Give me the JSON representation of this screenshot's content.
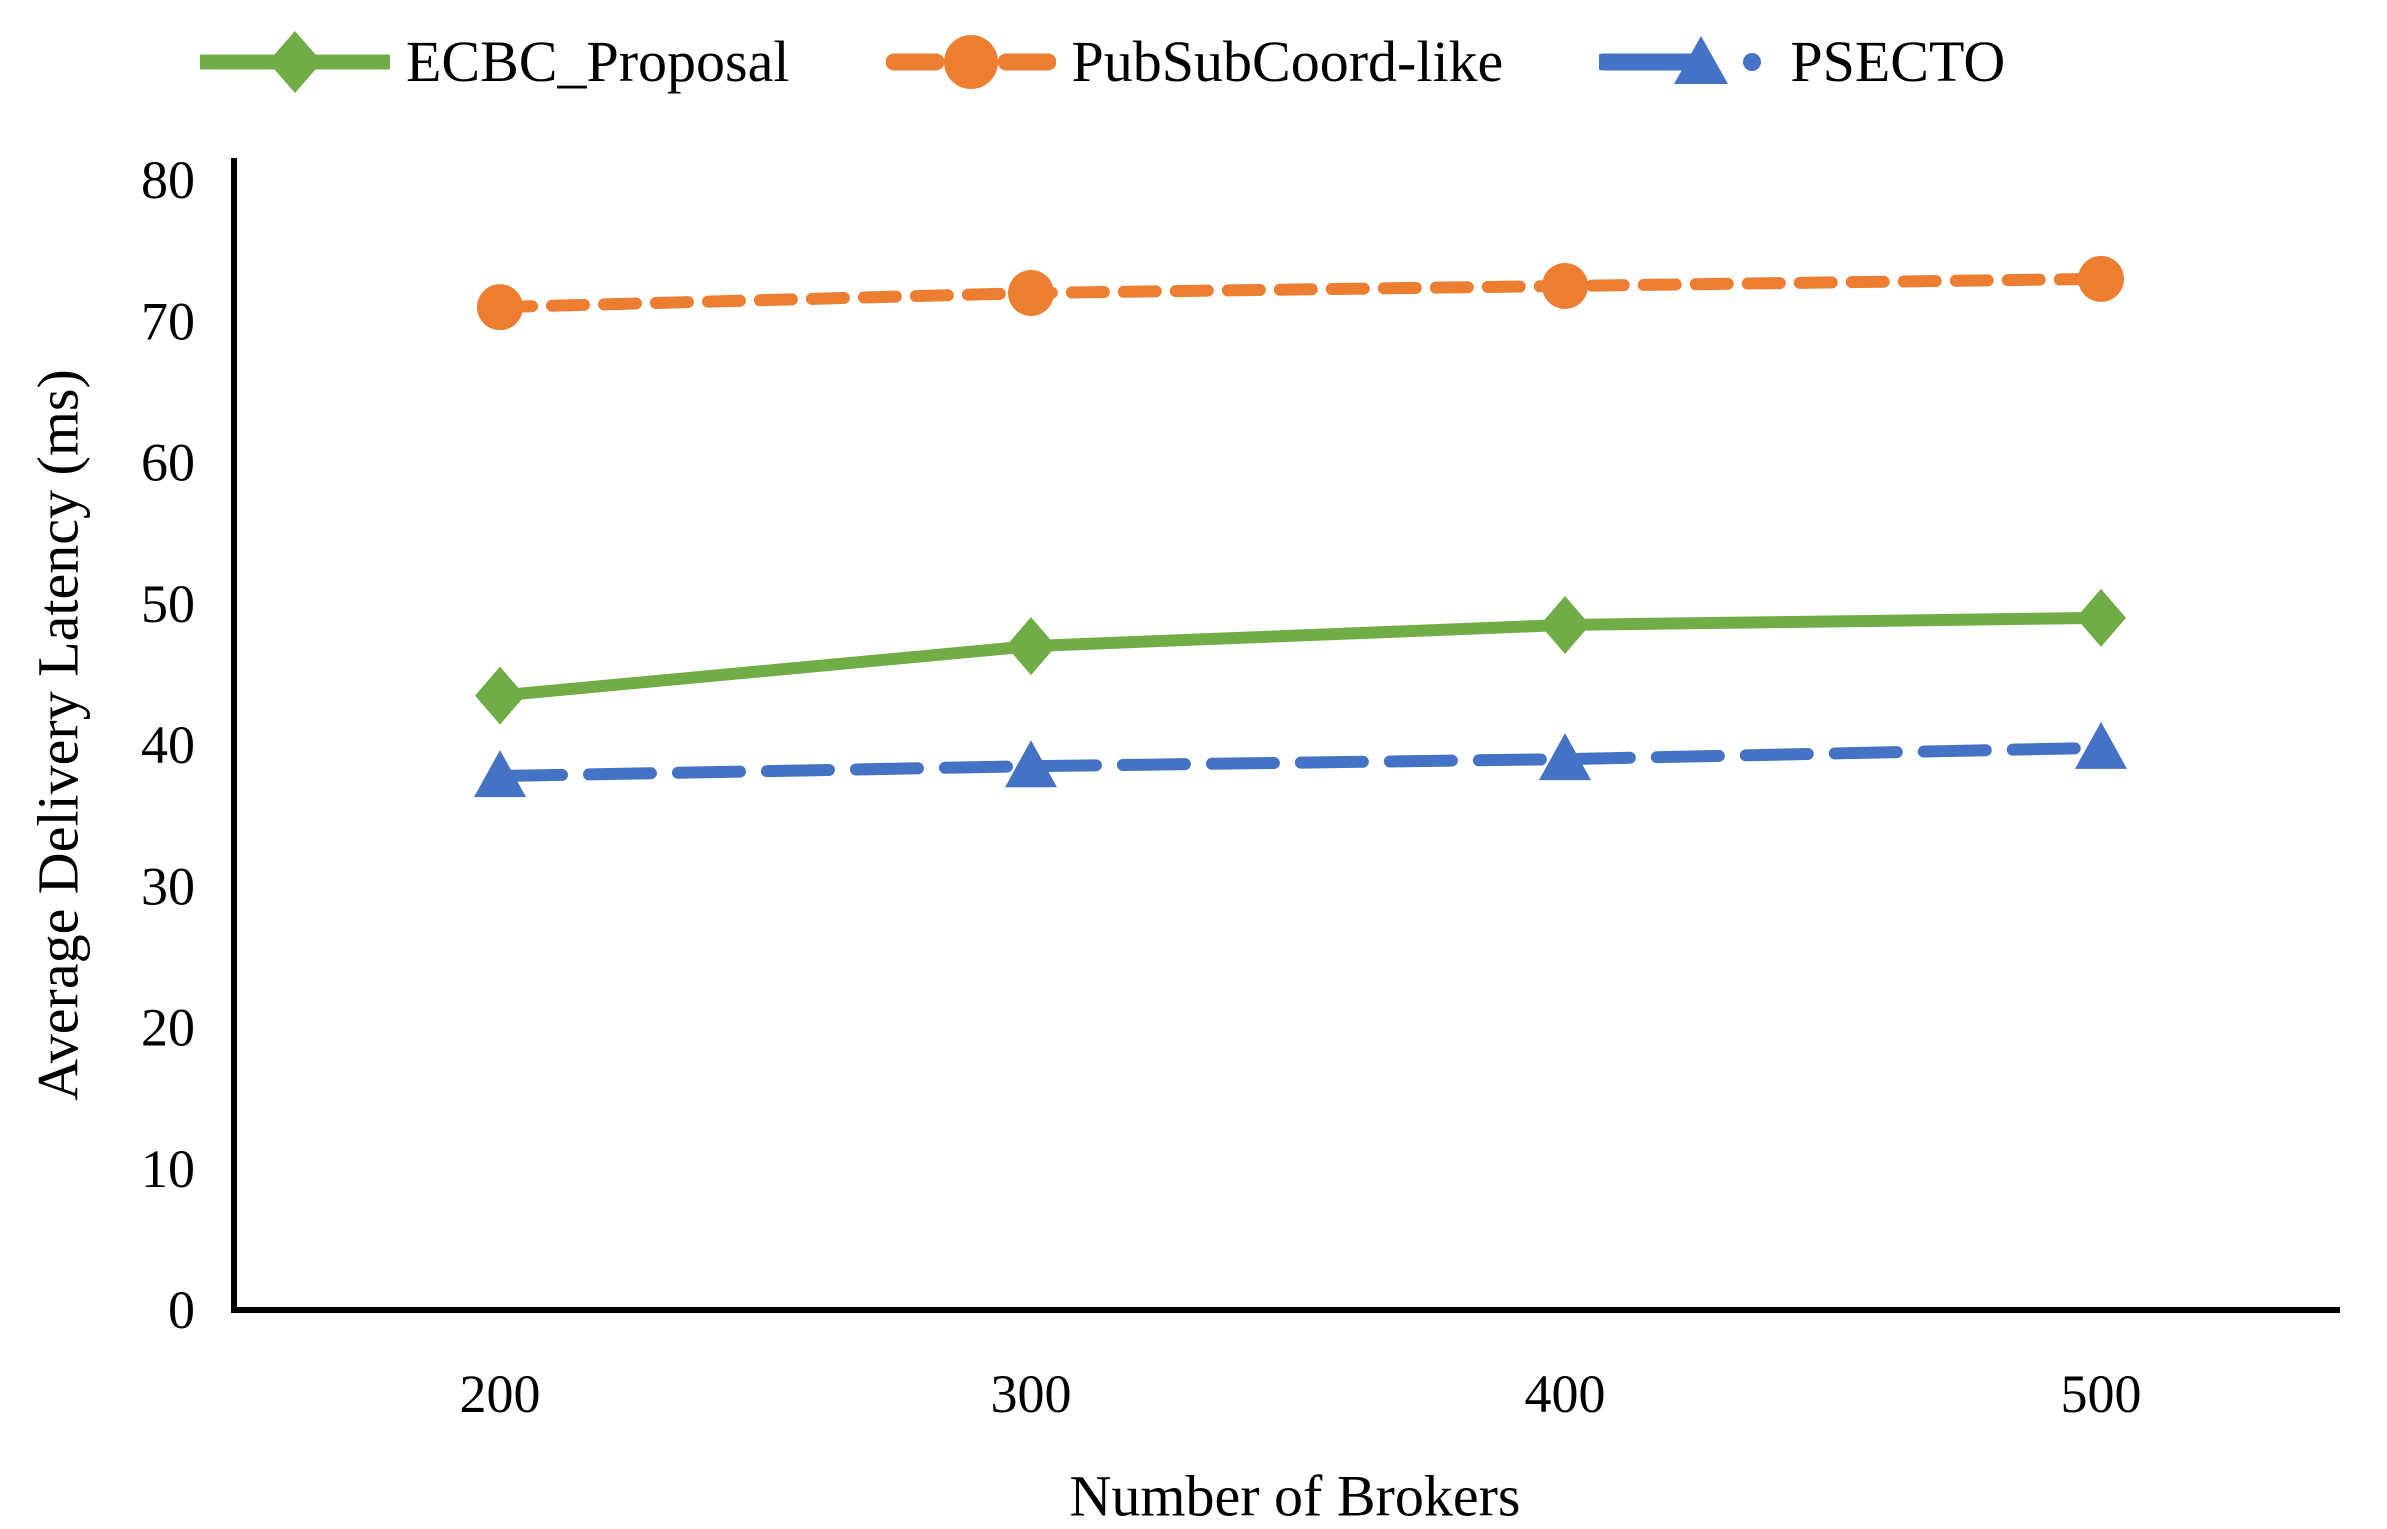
{
  "figure": {
    "background_color": "#ffffff",
    "axis_color": "#000000",
    "text_color": "#000000"
  },
  "chart_data": {
    "type": "line",
    "title": "",
    "xlabel": "Number of Brokers",
    "ylabel": "Average Delivery Latency (ms)",
    "x": [
      200,
      300,
      400,
      500
    ],
    "x_tick_labels": [
      "200",
      "300",
      "400",
      "500"
    ],
    "ylim": [
      0,
      80
    ],
    "yticks": [
      0,
      10,
      20,
      30,
      40,
      50,
      60,
      70,
      80
    ],
    "grid": false,
    "legend_position": "top",
    "series": [
      {
        "name": "ECBC_Proposal",
        "color": "#70AD47",
        "line_style": "solid",
        "marker": "diamond",
        "values": [
          43.5,
          47,
          48.5,
          49
        ]
      },
      {
        "name": "PubSubCoord-like",
        "color": "#ED7D31",
        "line_style": "dashed",
        "marker": "circle",
        "values": [
          71,
          72,
          72.5,
          73
        ]
      },
      {
        "name": "PSECTO",
        "color": "#4472C4",
        "line_style": "long-dash",
        "marker": "triangle",
        "values": [
          37.8,
          38.5,
          39,
          39.8
        ]
      }
    ]
  }
}
